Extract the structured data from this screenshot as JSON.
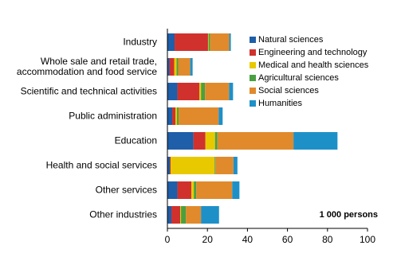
{
  "chart_data": {
    "type": "stacked-barh",
    "categories": [
      "Industry",
      "Whole sale and retail trade,\naccommodation and food service",
      "Scientific and technical activities",
      "Public administration",
      "Education",
      "Health and social services",
      "Other services",
      "Other industries"
    ],
    "series": [
      {
        "name": "Natural sciences",
        "color": "#1f5ea8",
        "values": [
          3.6,
          1,
          5,
          2.4,
          13,
          1.2,
          5,
          2
        ]
      },
      {
        "name": "Engineering and technology",
        "color": "#d0312d",
        "values": [
          16.7,
          2.4,
          11,
          1.6,
          6,
          0.4,
          7,
          4.4
        ]
      },
      {
        "name": "Medical and health sciences",
        "color": "#e8c900",
        "values": [
          0.3,
          1.2,
          0.8,
          0.8,
          4.8,
          22,
          1.2,
          0.4
        ]
      },
      {
        "name": "Agricultural sciences",
        "color": "#4aa040",
        "values": [
          0.8,
          0.8,
          2,
          0.8,
          1.2,
          0.4,
          1.2,
          2.4
        ]
      },
      {
        "name": "Social sciences",
        "color": "#e08a2c",
        "values": [
          9.5,
          6,
          12,
          20,
          38,
          9,
          18,
          7.6
        ]
      },
      {
        "name": "Humanities",
        "color": "#1e90c8",
        "values": [
          0.8,
          1.2,
          2,
          2,
          22,
          2,
          3.6,
          9
        ]
      }
    ],
    "xlim": [
      0,
      100
    ],
    "xticks": [
      0,
      20,
      40,
      60,
      80,
      100
    ],
    "annotation": "1 000 persons"
  }
}
